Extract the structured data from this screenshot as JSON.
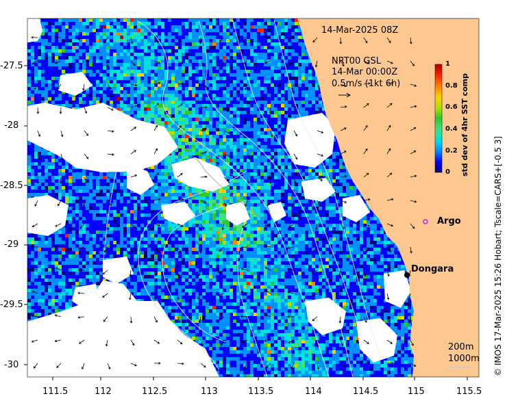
{
  "title": "14-Mar-2025 08Z",
  "product": {
    "line1": "NRT00 GSL",
    "line2": "14-Mar 00:00Z",
    "line3": "0.5m/s (1kt 6h)"
  },
  "colorbar": {
    "title": "std dev of 4hr SST comp",
    "ticks": [
      "0",
      "0.2",
      "0.4",
      "0.6",
      "0.8",
      "1"
    ],
    "colors": [
      "#00007f",
      "#0000ff",
      "#0090ff",
      "#00e0e0",
      "#40e080",
      "#30c830",
      "#b0e000",
      "#ffd000",
      "#ff7f00",
      "#ff2000",
      "#b00000"
    ]
  },
  "axes": {
    "x_ticks": [
      "111.5",
      "112",
      "112.5",
      "113",
      "113.5",
      "114",
      "114.5",
      "115",
      "115.5"
    ],
    "y_ticks": [
      "-27.5",
      "-28",
      "-28.5",
      "-29",
      "-29.5",
      "-30"
    ]
  },
  "places": {
    "argo": "Argo",
    "dongara": "Dongara"
  },
  "isobaths": {
    "label1": "200m",
    "label2": "1000m"
  },
  "credit": "© IMOS 17-Mar-2025 15:26 Hobart; Tscale=CARS+[-0.5 3]",
  "colors": {
    "land": "#fcc890",
    "ocean_low": "#0a1f9e",
    "argo_marker": "#e020e0"
  }
}
